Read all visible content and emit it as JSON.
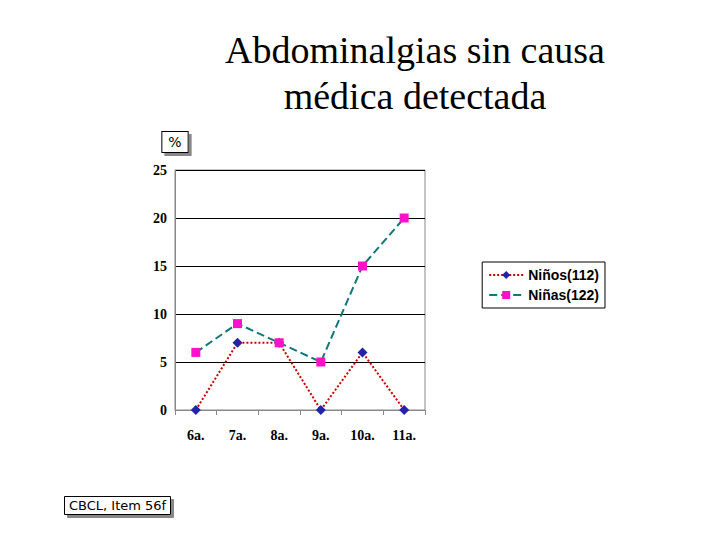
{
  "chart_data": {
    "type": "line",
    "title": "Abdominalgias sin causa\nmédica detectada",
    "ylabel": "%",
    "annotation": "CBCL, Item 56f",
    "categories": [
      "6a.",
      "7a.",
      "8a.",
      "9a.",
      "10a.",
      "11a."
    ],
    "series": [
      {
        "name": "Niños(112)",
        "color": "#cc0000",
        "line_style": "dotted",
        "marker": "diamond",
        "colors": [
          "#2222aa",
          "#2222aa",
          "#2222aa",
          "#2222aa",
          "#2222aa",
          "#2222aa"
        ],
        "values": [
          0,
          7,
          7,
          0,
          6,
          0
        ]
      },
      {
        "name": "Niñas(122)",
        "color": "#117777",
        "line_style": "dashed",
        "marker": "square",
        "colors": [
          "#ff11cc",
          "#ff11cc",
          "#ff11cc",
          "#ff11cc",
          "#ff11cc",
          "#ff11cc"
        ],
        "values": [
          6,
          9,
          7,
          5,
          15,
          20
        ]
      }
    ],
    "ylim": [
      0,
      25
    ],
    "yticks": [
      0,
      5,
      10,
      15,
      20,
      25
    ],
    "grid": true,
    "legend": "right"
  }
}
